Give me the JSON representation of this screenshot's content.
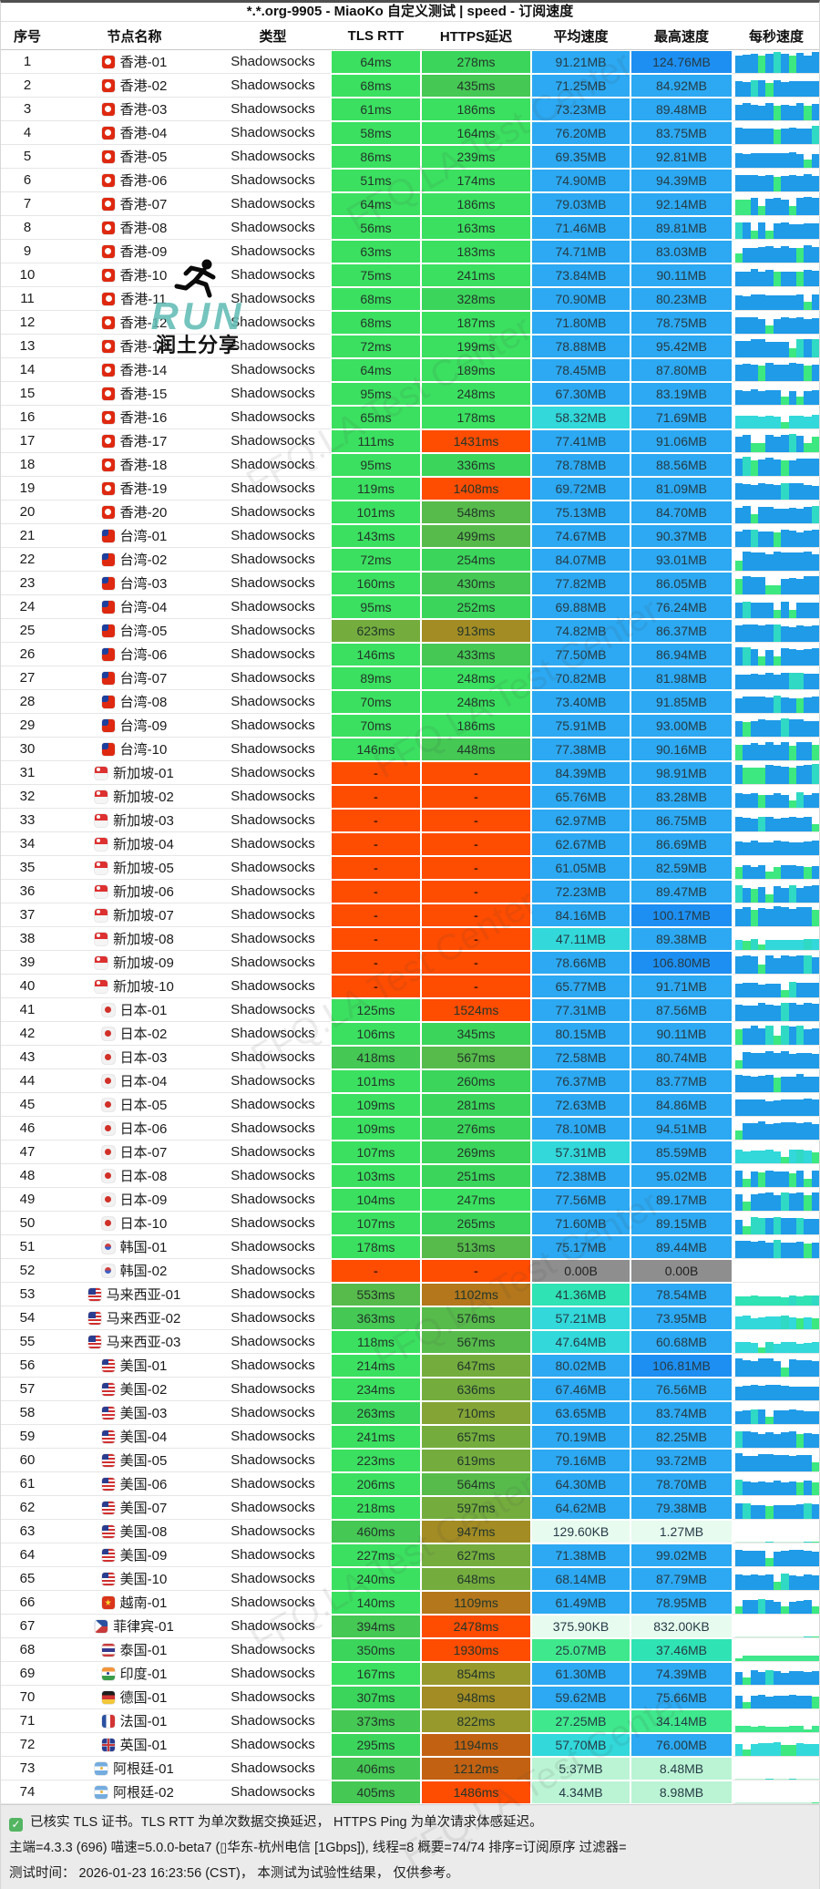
{
  "title": "*.*.org-9905 - MiaoKo 自定义测试 | speed - 订阅速度",
  "columns": [
    {
      "id": "index",
      "label": "序号"
    },
    {
      "id": "node-name",
      "label": "节点名称"
    },
    {
      "id": "type",
      "label": "类型"
    },
    {
      "id": "tls-rtt",
      "label": "TLS RTT"
    },
    {
      "id": "https-latency",
      "label": "HTTPS延迟"
    },
    {
      "id": "avg-speed",
      "label": "平均速度"
    },
    {
      "id": "max-speed",
      "label": "最高速度"
    },
    {
      "id": "per-second-speed",
      "label": "每秒速度"
    }
  ],
  "logo": {
    "run": "RUN",
    "text": "润土分享"
  },
  "watermark": "FFQ.LA Test Center",
  "footer": {
    "line1": "已核实 TLS 证书。TLS RTT 为单次数据交换延迟， HTTPS Ping 为单次请求体感延迟。",
    "line2": "主端=4.3.3 (696) 喵速=5.0.0-beta7 (▯华东-杭州电信 [1Gbps]), 线程=8 概要=74/74 排序=订阅原序 过滤器=",
    "line3": "测试时间： 2026-01-23 16:23:56 (CST)， 本测试为试验性结果， 仅供参考。"
  },
  "colors": {
    "latency_ramp": [
      [
        250,
        "#3be060"
      ],
      [
        360,
        "#3bd55b"
      ],
      [
        470,
        "#45c854"
      ],
      [
        580,
        "#57bb4b"
      ],
      [
        660,
        "#74ad3e"
      ],
      [
        730,
        "#84a436"
      ],
      [
        870,
        "#97992d"
      ],
      [
        960,
        "#a38c24"
      ],
      [
        1120,
        "#b4771b"
      ],
      [
        1250,
        "#c26112"
      ],
      [
        1350,
        "#d5540b"
      ],
      [
        99999,
        "#fe4c01"
      ]
    ],
    "latency_missing": "#fe4c01",
    "speed_ramp": [
      [
        100,
        "#1d8ff2"
      ],
      [
        59,
        "#2ca9f2"
      ],
      [
        45,
        "#32d8da"
      ],
      [
        35,
        "#2fe3b4"
      ],
      [
        18,
        "#3fe88c"
      ],
      [
        10,
        "#8aefb4"
      ],
      [
        2,
        "#bbf4d4"
      ],
      [
        0,
        "#e7fbee"
      ]
    ],
    "speed_zero": "#8e8e8e",
    "spark_blue": "#1f9be8",
    "spark_accent": "#2fd9c4",
    "spark_accent2": "#3ce87f",
    "logo_teal": "#63bcb6",
    "check_green": "#53b561"
  },
  "rows": [
    {
      "n": 1,
      "cc": "hk",
      "name": "香港-01",
      "type": "Shadowsocks",
      "tls": "64ms",
      "https": "278ms",
      "avg": "91.21MB",
      "max": "124.76MB"
    },
    {
      "n": 2,
      "cc": "hk",
      "name": "香港-02",
      "type": "Shadowsocks",
      "tls": "68ms",
      "https": "435ms",
      "avg": "71.25MB",
      "max": "84.92MB"
    },
    {
      "n": 3,
      "cc": "hk",
      "name": "香港-03",
      "type": "Shadowsocks",
      "tls": "61ms",
      "https": "186ms",
      "avg": "73.23MB",
      "max": "89.48MB"
    },
    {
      "n": 4,
      "cc": "hk",
      "name": "香港-04",
      "type": "Shadowsocks",
      "tls": "58ms",
      "https": "164ms",
      "avg": "76.20MB",
      "max": "83.75MB"
    },
    {
      "n": 5,
      "cc": "hk",
      "name": "香港-05",
      "type": "Shadowsocks",
      "tls": "86ms",
      "https": "239ms",
      "avg": "69.35MB",
      "max": "92.81MB"
    },
    {
      "n": 6,
      "cc": "hk",
      "name": "香港-06",
      "type": "Shadowsocks",
      "tls": "51ms",
      "https": "174ms",
      "avg": "74.90MB",
      "max": "94.39MB"
    },
    {
      "n": 7,
      "cc": "hk",
      "name": "香港-07",
      "type": "Shadowsocks",
      "tls": "64ms",
      "https": "186ms",
      "avg": "79.03MB",
      "max": "92.14MB"
    },
    {
      "n": 8,
      "cc": "hk",
      "name": "香港-08",
      "type": "Shadowsocks",
      "tls": "56ms",
      "https": "163ms",
      "avg": "71.46MB",
      "max": "89.81MB"
    },
    {
      "n": 9,
      "cc": "hk",
      "name": "香港-09",
      "type": "Shadowsocks",
      "tls": "63ms",
      "https": "183ms",
      "avg": "74.71MB",
      "max": "83.03MB"
    },
    {
      "n": 10,
      "cc": "hk",
      "name": "香港-10",
      "type": "Shadowsocks",
      "tls": "75ms",
      "https": "241ms",
      "avg": "73.84MB",
      "max": "90.11MB"
    },
    {
      "n": 11,
      "cc": "hk",
      "name": "香港-11",
      "type": "Shadowsocks",
      "tls": "68ms",
      "https": "328ms",
      "avg": "70.90MB",
      "max": "80.23MB"
    },
    {
      "n": 12,
      "cc": "hk",
      "name": "香港-12",
      "type": "Shadowsocks",
      "tls": "68ms",
      "https": "187ms",
      "avg": "71.80MB",
      "max": "78.75MB"
    },
    {
      "n": 13,
      "cc": "hk",
      "name": "香港-13",
      "type": "Shadowsocks",
      "tls": "72ms",
      "https": "199ms",
      "avg": "78.88MB",
      "max": "95.42MB"
    },
    {
      "n": 14,
      "cc": "hk",
      "name": "香港-14",
      "type": "Shadowsocks",
      "tls": "64ms",
      "https": "189ms",
      "avg": "78.45MB",
      "max": "87.80MB"
    },
    {
      "n": 15,
      "cc": "hk",
      "name": "香港-15",
      "type": "Shadowsocks",
      "tls": "95ms",
      "https": "248ms",
      "avg": "67.30MB",
      "max": "83.19MB"
    },
    {
      "n": 16,
      "cc": "hk",
      "name": "香港-16",
      "type": "Shadowsocks",
      "tls": "65ms",
      "https": "178ms",
      "avg": "58.32MB",
      "max": "71.69MB"
    },
    {
      "n": 17,
      "cc": "hk",
      "name": "香港-17",
      "type": "Shadowsocks",
      "tls": "111ms",
      "https": "1431ms",
      "avg": "77.41MB",
      "max": "91.06MB"
    },
    {
      "n": 18,
      "cc": "hk",
      "name": "香港-18",
      "type": "Shadowsocks",
      "tls": "95ms",
      "https": "336ms",
      "avg": "78.78MB",
      "max": "88.56MB"
    },
    {
      "n": 19,
      "cc": "hk",
      "name": "香港-19",
      "type": "Shadowsocks",
      "tls": "119ms",
      "https": "1408ms",
      "avg": "69.72MB",
      "max": "81.09MB"
    },
    {
      "n": 20,
      "cc": "hk",
      "name": "香港-20",
      "type": "Shadowsocks",
      "tls": "101ms",
      "https": "548ms",
      "avg": "75.13MB",
      "max": "84.70MB"
    },
    {
      "n": 21,
      "cc": "tw",
      "name": "台湾-01",
      "type": "Shadowsocks",
      "tls": "143ms",
      "https": "499ms",
      "avg": "74.67MB",
      "max": "90.37MB"
    },
    {
      "n": 22,
      "cc": "tw",
      "name": "台湾-02",
      "type": "Shadowsocks",
      "tls": "72ms",
      "https": "254ms",
      "avg": "84.07MB",
      "max": "93.01MB"
    },
    {
      "n": 23,
      "cc": "tw",
      "name": "台湾-03",
      "type": "Shadowsocks",
      "tls": "160ms",
      "https": "430ms",
      "avg": "77.82MB",
      "max": "86.05MB"
    },
    {
      "n": 24,
      "cc": "tw",
      "name": "台湾-04",
      "type": "Shadowsocks",
      "tls": "95ms",
      "https": "252ms",
      "avg": "69.88MB",
      "max": "76.24MB"
    },
    {
      "n": 25,
      "cc": "tw",
      "name": "台湾-05",
      "type": "Shadowsocks",
      "tls": "623ms",
      "https": "913ms",
      "avg": "74.82MB",
      "max": "86.37MB"
    },
    {
      "n": 26,
      "cc": "tw",
      "name": "台湾-06",
      "type": "Shadowsocks",
      "tls": "146ms",
      "https": "433ms",
      "avg": "77.50MB",
      "max": "86.94MB"
    },
    {
      "n": 27,
      "cc": "tw",
      "name": "台湾-07",
      "type": "Shadowsocks",
      "tls": "89ms",
      "https": "248ms",
      "avg": "70.82MB",
      "max": "81.98MB"
    },
    {
      "n": 28,
      "cc": "tw",
      "name": "台湾-08",
      "type": "Shadowsocks",
      "tls": "70ms",
      "https": "248ms",
      "avg": "73.40MB",
      "max": "91.85MB"
    },
    {
      "n": 29,
      "cc": "tw",
      "name": "台湾-09",
      "type": "Shadowsocks",
      "tls": "70ms",
      "https": "186ms",
      "avg": "75.91MB",
      "max": "93.00MB"
    },
    {
      "n": 30,
      "cc": "tw",
      "name": "台湾-10",
      "type": "Shadowsocks",
      "tls": "146ms",
      "https": "448ms",
      "avg": "77.38MB",
      "max": "90.16MB"
    },
    {
      "n": 31,
      "cc": "sg",
      "name": "新加坡-01",
      "type": "Shadowsocks",
      "tls": "-",
      "https": "-",
      "avg": "84.39MB",
      "max": "98.91MB"
    },
    {
      "n": 32,
      "cc": "sg",
      "name": "新加坡-02",
      "type": "Shadowsocks",
      "tls": "-",
      "https": "-",
      "avg": "65.76MB",
      "max": "83.28MB"
    },
    {
      "n": 33,
      "cc": "sg",
      "name": "新加坡-03",
      "type": "Shadowsocks",
      "tls": "-",
      "https": "-",
      "avg": "62.97MB",
      "max": "86.75MB"
    },
    {
      "n": 34,
      "cc": "sg",
      "name": "新加坡-04",
      "type": "Shadowsocks",
      "tls": "-",
      "https": "-",
      "avg": "62.67MB",
      "max": "86.69MB"
    },
    {
      "n": 35,
      "cc": "sg",
      "name": "新加坡-05",
      "type": "Shadowsocks",
      "tls": "-",
      "https": "-",
      "avg": "61.05MB",
      "max": "82.59MB"
    },
    {
      "n": 36,
      "cc": "sg",
      "name": "新加坡-06",
      "type": "Shadowsocks",
      "tls": "-",
      "https": "-",
      "avg": "72.23MB",
      "max": "89.47MB"
    },
    {
      "n": 37,
      "cc": "sg",
      "name": "新加坡-07",
      "type": "Shadowsocks",
      "tls": "-",
      "https": "-",
      "avg": "84.16MB",
      "max": "100.17MB"
    },
    {
      "n": 38,
      "cc": "sg",
      "name": "新加坡-08",
      "type": "Shadowsocks",
      "tls": "-",
      "https": "-",
      "avg": "47.11MB",
      "max": "89.38MB"
    },
    {
      "n": 39,
      "cc": "sg",
      "name": "新加坡-09",
      "type": "Shadowsocks",
      "tls": "-",
      "https": "-",
      "avg": "78.66MB",
      "max": "106.80MB"
    },
    {
      "n": 40,
      "cc": "sg",
      "name": "新加坡-10",
      "type": "Shadowsocks",
      "tls": "-",
      "https": "-",
      "avg": "65.77MB",
      "max": "91.71MB"
    },
    {
      "n": 41,
      "cc": "jp",
      "name": "日本-01",
      "type": "Shadowsocks",
      "tls": "125ms",
      "https": "1524ms",
      "avg": "77.31MB",
      "max": "87.56MB"
    },
    {
      "n": 42,
      "cc": "jp",
      "name": "日本-02",
      "type": "Shadowsocks",
      "tls": "106ms",
      "https": "345ms",
      "avg": "80.15MB",
      "max": "90.11MB"
    },
    {
      "n": 43,
      "cc": "jp",
      "name": "日本-03",
      "type": "Shadowsocks",
      "tls": "418ms",
      "https": "567ms",
      "avg": "72.58MB",
      "max": "80.74MB"
    },
    {
      "n": 44,
      "cc": "jp",
      "name": "日本-04",
      "type": "Shadowsocks",
      "tls": "101ms",
      "https": "260ms",
      "avg": "76.37MB",
      "max": "83.77MB"
    },
    {
      "n": 45,
      "cc": "jp",
      "name": "日本-05",
      "type": "Shadowsocks",
      "tls": "109ms",
      "https": "281ms",
      "avg": "72.63MB",
      "max": "84.86MB"
    },
    {
      "n": 46,
      "cc": "jp",
      "name": "日本-06",
      "type": "Shadowsocks",
      "tls": "109ms",
      "https": "276ms",
      "avg": "78.10MB",
      "max": "94.51MB"
    },
    {
      "n": 47,
      "cc": "jp",
      "name": "日本-07",
      "type": "Shadowsocks",
      "tls": "107ms",
      "https": "269ms",
      "avg": "57.31MB",
      "max": "85.59MB"
    },
    {
      "n": 48,
      "cc": "jp",
      "name": "日本-08",
      "type": "Shadowsocks",
      "tls": "103ms",
      "https": "251ms",
      "avg": "72.38MB",
      "max": "95.02MB"
    },
    {
      "n": 49,
      "cc": "jp",
      "name": "日本-09",
      "type": "Shadowsocks",
      "tls": "104ms",
      "https": "247ms",
      "avg": "77.56MB",
      "max": "89.17MB"
    },
    {
      "n": 50,
      "cc": "jp",
      "name": "日本-10",
      "type": "Shadowsocks",
      "tls": "107ms",
      "https": "265ms",
      "avg": "71.60MB",
      "max": "89.15MB"
    },
    {
      "n": 51,
      "cc": "kr",
      "name": "韩国-01",
      "type": "Shadowsocks",
      "tls": "178ms",
      "https": "513ms",
      "avg": "75.17MB",
      "max": "89.44MB"
    },
    {
      "n": 52,
      "cc": "kr",
      "name": "韩国-02",
      "type": "Shadowsocks",
      "tls": "-",
      "https": "-",
      "avg": "0.00B",
      "max": "0.00B"
    },
    {
      "n": 53,
      "cc": "my",
      "name": "马来西亚-01",
      "type": "Shadowsocks",
      "tls": "553ms",
      "https": "1102ms",
      "avg": "41.36MB",
      "max": "78.54MB"
    },
    {
      "n": 54,
      "cc": "my",
      "name": "马来西亚-02",
      "type": "Shadowsocks",
      "tls": "363ms",
      "https": "576ms",
      "avg": "57.21MB",
      "max": "73.95MB"
    },
    {
      "n": 55,
      "cc": "my",
      "name": "马来西亚-03",
      "type": "Shadowsocks",
      "tls": "118ms",
      "https": "567ms",
      "avg": "47.64MB",
      "max": "60.68MB"
    },
    {
      "n": 56,
      "cc": "us",
      "name": "美国-01",
      "type": "Shadowsocks",
      "tls": "214ms",
      "https": "647ms",
      "avg": "80.02MB",
      "max": "106.81MB"
    },
    {
      "n": 57,
      "cc": "us",
      "name": "美国-02",
      "type": "Shadowsocks",
      "tls": "234ms",
      "https": "636ms",
      "avg": "67.46MB",
      "max": "76.56MB"
    },
    {
      "n": 58,
      "cc": "us",
      "name": "美国-03",
      "type": "Shadowsocks",
      "tls": "263ms",
      "https": "710ms",
      "avg": "63.65MB",
      "max": "83.74MB"
    },
    {
      "n": 59,
      "cc": "us",
      "name": "美国-04",
      "type": "Shadowsocks",
      "tls": "241ms",
      "https": "657ms",
      "avg": "70.19MB",
      "max": "82.25MB"
    },
    {
      "n": 60,
      "cc": "us",
      "name": "美国-05",
      "type": "Shadowsocks",
      "tls": "223ms",
      "https": "619ms",
      "avg": "79.16MB",
      "max": "93.72MB"
    },
    {
      "n": 61,
      "cc": "us",
      "name": "美国-06",
      "type": "Shadowsocks",
      "tls": "206ms",
      "https": "564ms",
      "avg": "64.30MB",
      "max": "78.70MB"
    },
    {
      "n": 62,
      "cc": "us",
      "name": "美国-07",
      "type": "Shadowsocks",
      "tls": "218ms",
      "https": "597ms",
      "avg": "64.62MB",
      "max": "79.38MB"
    },
    {
      "n": 63,
      "cc": "us",
      "name": "美国-08",
      "type": "Shadowsocks",
      "tls": "460ms",
      "https": "947ms",
      "avg": "129.60KB",
      "max": "1.27MB"
    },
    {
      "n": 64,
      "cc": "us",
      "name": "美国-09",
      "type": "Shadowsocks",
      "tls": "227ms",
      "https": "627ms",
      "avg": "71.38MB",
      "max": "99.02MB"
    },
    {
      "n": 65,
      "cc": "us",
      "name": "美国-10",
      "type": "Shadowsocks",
      "tls": "240ms",
      "https": "648ms",
      "avg": "68.14MB",
      "max": "87.79MB"
    },
    {
      "n": 66,
      "cc": "vn",
      "name": "越南-01",
      "type": "Shadowsocks",
      "tls": "140ms",
      "https": "1109ms",
      "avg": "61.49MB",
      "max": "78.95MB"
    },
    {
      "n": 67,
      "cc": "ph",
      "name": "菲律宾-01",
      "type": "Shadowsocks",
      "tls": "394ms",
      "https": "2478ms",
      "avg": "375.90KB",
      "max": "832.00KB"
    },
    {
      "n": 68,
      "cc": "th",
      "name": "泰国-01",
      "type": "Shadowsocks",
      "tls": "350ms",
      "https": "1930ms",
      "avg": "25.07MB",
      "max": "37.46MB"
    },
    {
      "n": 69,
      "cc": "in",
      "name": "印度-01",
      "type": "Shadowsocks",
      "tls": "167ms",
      "https": "854ms",
      "avg": "61.30MB",
      "max": "74.39MB"
    },
    {
      "n": 70,
      "cc": "de",
      "name": "德国-01",
      "type": "Shadowsocks",
      "tls": "307ms",
      "https": "948ms",
      "avg": "59.62MB",
      "max": "75.66MB"
    },
    {
      "n": 71,
      "cc": "fr",
      "name": "法国-01",
      "type": "Shadowsocks",
      "tls": "373ms",
      "https": "822ms",
      "avg": "27.25MB",
      "max": "34.14MB"
    },
    {
      "n": 72,
      "cc": "gb",
      "name": "英国-01",
      "type": "Shadowsocks",
      "tls": "295ms",
      "https": "1194ms",
      "avg": "57.70MB",
      "max": "76.00MB"
    },
    {
      "n": 73,
      "cc": "ar",
      "name": "阿根廷-01",
      "type": "Shadowsocks",
      "tls": "406ms",
      "https": "1212ms",
      "avg": "5.37MB",
      "max": "8.48MB"
    },
    {
      "n": 74,
      "cc": "ar",
      "name": "阿根廷-02",
      "type": "Shadowsocks",
      "tls": "405ms",
      "https": "1486ms",
      "avg": "4.34MB",
      "max": "8.98MB"
    }
  ]
}
